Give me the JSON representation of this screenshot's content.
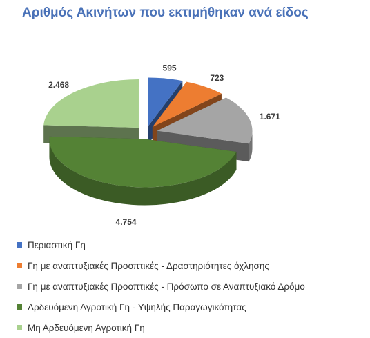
{
  "chart_data": {
    "type": "pie",
    "title": "Αριθμός Ακινήτων που εκτιμήθηκαν ανά είδος",
    "legend_position": "bottom",
    "slices": [
      {
        "label": "Περιαστική Γη",
        "value": 595,
        "value_label": "595",
        "color": "#4472c4"
      },
      {
        "label": "Γη με αναπτυξιακές Προοπτικές - Δραστηριότητες όχλησης",
        "value": 723,
        "value_label": "723",
        "color": "#ed7d31"
      },
      {
        "label": "Γη με αναπτυξιακές Προοπτικές  - Πρόσωπο σε Αναπτυξιακό Δρόμο",
        "value": 1671,
        "value_label": "1.671",
        "color": "#a5a5a5"
      },
      {
        "label": "Αρδευόμενη Αγροτική Γη - Υψηλής Παραγωγικότητας",
        "value": 4754,
        "value_label": "4.754",
        "color": "#548235"
      },
      {
        "label": "Μη Αρδευόμενη Αγροτική Γη",
        "value": 2468,
        "value_label": "2.468",
        "color": "#a9d18e"
      }
    ]
  }
}
